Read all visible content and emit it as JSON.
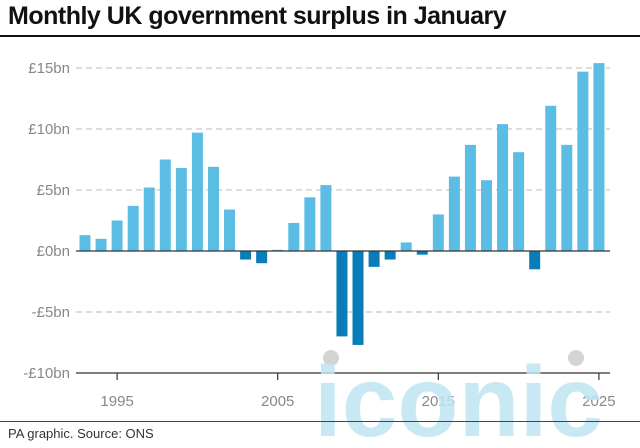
{
  "title": "Monthly UK government surplus in January",
  "footer": "PA graphic. Source: ONS",
  "watermark": "iconic",
  "colors": {
    "positive": "#5bbde4",
    "negative": "#0a7db8",
    "grid": "#bbbbbb",
    "axis": "#333333",
    "tick_text": "#888888"
  },
  "chart_data": {
    "type": "bar",
    "title": "Monthly UK government surplus in January",
    "xlabel": "",
    "ylabel": "",
    "unit": "£bn",
    "ylim": [
      -10,
      15
    ],
    "yticks": [
      15,
      10,
      5,
      0,
      -5,
      -10
    ],
    "ytick_labels": [
      "£15bn",
      "£10bn",
      "£5bn",
      "£0bn",
      "-£5bn",
      "-£10bn"
    ],
    "xticks": [
      1995,
      2005,
      2015,
      2025
    ],
    "xtick_labels": [
      "1995",
      "2005",
      "2015",
      "2025"
    ],
    "categories": [
      1993,
      1994,
      1995,
      1996,
      1997,
      1998,
      1999,
      2000,
      2001,
      2002,
      2003,
      2004,
      2005,
      2006,
      2007,
      2008,
      2009,
      2010,
      2011,
      2012,
      2013,
      2014,
      2015,
      2016,
      2017,
      2018,
      2019,
      2020,
      2021,
      2022,
      2023,
      2024,
      2025
    ],
    "values": [
      1.3,
      1.0,
      2.5,
      3.7,
      5.2,
      7.5,
      6.8,
      9.7,
      6.9,
      3.4,
      -0.7,
      -1.0,
      0.1,
      2.3,
      4.4,
      5.4,
      -7.0,
      -7.7,
      -1.3,
      -0.7,
      0.7,
      -0.3,
      3.0,
      6.1,
      8.7,
      5.8,
      10.4,
      8.1,
      -1.5,
      11.9,
      8.7,
      14.7,
      15.4
    ],
    "grid": true,
    "legend": "none"
  }
}
